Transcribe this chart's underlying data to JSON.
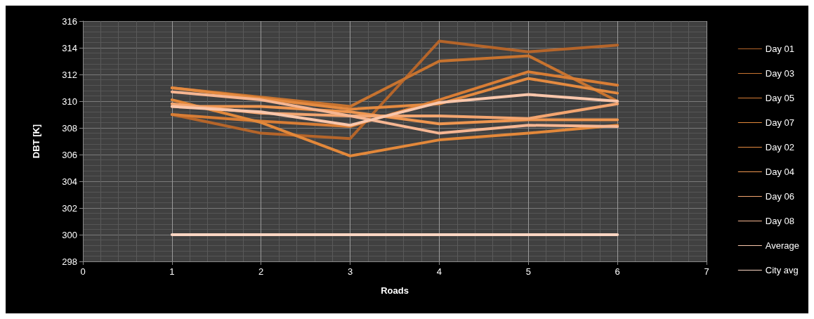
{
  "chart_data": {
    "type": "line",
    "xlabel": "Roads",
    "ylabel": "DBT [K]",
    "x": [
      1,
      2,
      3,
      4,
      5,
      6
    ],
    "xlim": [
      0,
      7
    ],
    "xticks": [
      0,
      1,
      2,
      3,
      4,
      5,
      6,
      7
    ],
    "ylim": [
      298,
      316
    ],
    "yticks": [
      298,
      300,
      302,
      304,
      306,
      308,
      310,
      312,
      314,
      316
    ],
    "grid": true,
    "legend": "right",
    "marker": "none",
    "line_style": "solid",
    "series": [
      {
        "name": "Day 01",
        "color": "#b5652a",
        "values": [
          309.0,
          307.6,
          307.2,
          314.5,
          313.7,
          314.2
        ]
      },
      {
        "name": "Day 03",
        "color": "#c7732f",
        "values": [
          311.0,
          310.3,
          309.6,
          313.0,
          313.4,
          310.0
        ]
      },
      {
        "name": "Day 05",
        "color": "#d87d35",
        "values": [
          309.0,
          308.5,
          308.1,
          310.1,
          312.2,
          311.2
        ]
      },
      {
        "name": "Day 07",
        "color": "#e3883a",
        "values": [
          310.1,
          308.4,
          305.9,
          307.1,
          307.6,
          308.2
        ]
      },
      {
        "name": "Day 02",
        "color": "#e48a40",
        "values": [
          311.0,
          310.2,
          309.4,
          309.8,
          311.7,
          310.6
        ]
      },
      {
        "name": "Day 04",
        "color": "#ef9650",
        "values": [
          309.6,
          309.6,
          309.2,
          308.3,
          308.6,
          308.6
        ]
      },
      {
        "name": "Day 06",
        "color": "#f3a570",
        "values": [
          309.8,
          309.1,
          308.9,
          308.9,
          308.7,
          309.8
        ]
      },
      {
        "name": "Day 08",
        "color": "#f6b692",
        "values": [
          310.7,
          310.1,
          308.9,
          307.6,
          308.2,
          308.1
        ]
      },
      {
        "name": "Average",
        "color": "#f9c6ab",
        "values": [
          309.6,
          309.2,
          308.2,
          309.9,
          310.5,
          310.0
        ]
      },
      {
        "name": "City avg",
        "color": "#fbd6c3",
        "values": [
          300,
          300,
          300,
          300,
          300,
          300
        ]
      }
    ]
  }
}
